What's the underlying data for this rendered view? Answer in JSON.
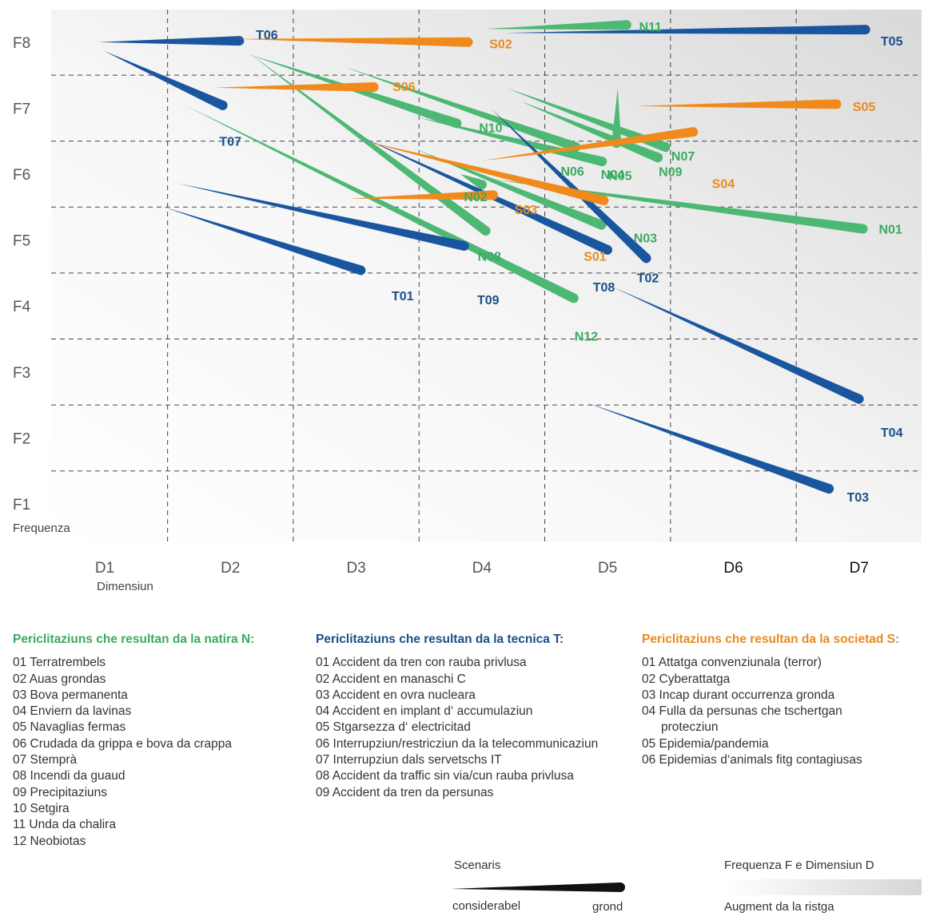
{
  "chart_data": {
    "type": "scatter",
    "title": "",
    "x_axis": {
      "label": "Dimensiun",
      "ticks": [
        "D1",
        "D2",
        "D3",
        "D4",
        "D5",
        "D6",
        "D7"
      ],
      "range": [
        0.5,
        7.5
      ]
    },
    "y_axis": {
      "label": "Frequenza",
      "ticks": [
        "F1",
        "F2",
        "F3",
        "F4",
        "F5",
        "F6",
        "F7",
        "F8"
      ],
      "range": [
        0.5,
        8.5
      ]
    },
    "grid": true,
    "background": "gradient white to grey, increasing towards high frequency and dimension",
    "colors": {
      "N": "#4db873",
      "T": "#1a56a0",
      "S": "#f08a1c"
    },
    "scenarios": [
      {
        "id": "N01",
        "group": "N",
        "from": [
          4.05,
          5.93
        ],
        "to": [
          7.03,
          5.17
        ],
        "label": [
          7.25,
          5.17
        ]
      },
      {
        "id": "N02",
        "group": "N",
        "from": [
          3.83,
          6.0
        ],
        "to": [
          4.0,
          5.84
        ],
        "label": [
          3.95,
          5.66
        ]
      },
      {
        "id": "N03",
        "group": "N",
        "from": [
          3.47,
          6.38
        ],
        "to": [
          4.95,
          5.23
        ],
        "label": [
          5.3,
          5.04
        ]
      },
      {
        "id": "N04",
        "group": "N",
        "from": [
          5.08,
          7.3
        ],
        "to": [
          5.07,
          6.47
        ],
        "label": [
          5.04,
          6.0
        ]
      },
      {
        "id": "N05",
        "group": "N",
        "from": [
          3.47,
          6.87
        ],
        "to": [
          4.96,
          6.19
        ],
        "label": [
          5.1,
          5.98
        ]
      },
      {
        "id": "N06",
        "group": "N",
        "from": [
          2.9,
          7.63
        ],
        "to": [
          4.75,
          6.41
        ],
        "label": [
          4.72,
          6.05
        ]
      },
      {
        "id": "N07",
        "group": "N",
        "from": [
          4.2,
          7.3
        ],
        "to": [
          5.46,
          6.41
        ],
        "label": [
          5.6,
          6.28
        ]
      },
      {
        "id": "N08",
        "group": "N",
        "from": [
          2.15,
          7.83
        ],
        "to": [
          4.03,
          5.14
        ],
        "label": [
          4.06,
          4.76
        ]
      },
      {
        "id": "N09",
        "group": "N",
        "from": [
          4.3,
          7.11
        ],
        "to": [
          5.4,
          6.25
        ],
        "label": [
          5.5,
          6.04
        ]
      },
      {
        "id": "N10",
        "group": "N",
        "from": [
          2.14,
          7.82
        ],
        "to": [
          3.8,
          6.77
        ],
        "label": [
          4.07,
          6.71
        ]
      },
      {
        "id": "N11",
        "group": "N",
        "from": [
          4.03,
          8.2
        ],
        "to": [
          5.15,
          8.26
        ],
        "label": [
          5.34,
          8.24
        ]
      },
      {
        "id": "N12",
        "group": "N",
        "from": [
          1.62,
          7.06
        ],
        "to": [
          4.73,
          4.12
        ],
        "label": [
          4.83,
          3.55
        ]
      },
      {
        "id": "T01",
        "group": "T",
        "from": [
          1.47,
          5.5
        ],
        "to": [
          3.04,
          4.54
        ],
        "label": [
          3.37,
          4.16
        ]
      },
      {
        "id": "T02",
        "group": "T",
        "from": [
          4.07,
          7.0
        ],
        "to": [
          5.31,
          4.72
        ],
        "label": [
          5.32,
          4.43
        ]
      },
      {
        "id": "T03",
        "group": "T",
        "from": [
          4.84,
          2.53
        ],
        "to": [
          6.76,
          1.23
        ],
        "label": [
          6.99,
          1.11
        ]
      },
      {
        "id": "T04",
        "group": "T",
        "from": [
          5.04,
          4.29
        ],
        "to": [
          7.0,
          2.59
        ],
        "label": [
          7.26,
          2.09
        ]
      },
      {
        "id": "T05",
        "group": "T",
        "from": [
          4.18,
          8.14
        ],
        "to": [
          7.05,
          8.19
        ],
        "label": [
          7.26,
          8.02
        ]
      },
      {
        "id": "T06",
        "group": "T",
        "from": [
          0.95,
          8.0
        ],
        "to": [
          2.07,
          8.02
        ],
        "label": [
          2.29,
          8.12
        ]
      },
      {
        "id": "T07",
        "group": "T",
        "from": [
          0.99,
          7.87
        ],
        "to": [
          1.94,
          7.04
        ],
        "label": [
          2.0,
          6.5
        ]
      },
      {
        "id": "T08",
        "group": "T",
        "from": [
          3.06,
          6.55
        ],
        "to": [
          5.0,
          4.85
        ],
        "label": [
          4.97,
          4.29
        ]
      },
      {
        "id": "T09",
        "group": "T",
        "from": [
          1.58,
          5.86
        ],
        "to": [
          3.86,
          4.91
        ],
        "label": [
          4.05,
          4.1
        ]
      },
      {
        "id": "S01",
        "group": "S",
        "from": [
          3.07,
          6.5
        ],
        "to": [
          4.97,
          5.6
        ],
        "label": [
          4.9,
          4.76
        ]
      },
      {
        "id": "S02",
        "group": "S",
        "from": [
          2.05,
          8.05
        ],
        "to": [
          3.89,
          8.0
        ],
        "label": [
          4.15,
          7.98
        ]
      },
      {
        "id": "S03",
        "group": "S",
        "from": [
          2.95,
          5.63
        ],
        "to": [
          4.09,
          5.68
        ],
        "label": [
          4.35,
          5.47
        ]
      },
      {
        "id": "S04",
        "group": "S",
        "from": [
          3.99,
          6.2
        ],
        "to": [
          5.68,
          6.64
        ],
        "label": [
          5.92,
          5.86
        ]
      },
      {
        "id": "S05",
        "group": "S",
        "from": [
          5.22,
          7.03
        ],
        "to": [
          6.82,
          7.06
        ],
        "label": [
          7.04,
          7.03
        ]
      },
      {
        "id": "S06",
        "group": "S",
        "from": [
          1.87,
          7.31
        ],
        "to": [
          3.14,
          7.32
        ],
        "label": [
          3.38,
          7.33
        ]
      }
    ]
  },
  "legend": {
    "natira": {
      "title": "Periclitaziuns che resultan da la natira N:",
      "items": [
        "01 Terratrembels",
        "02 Auas grondas",
        "03 Bova permanenta",
        "04 Enviern da lavinas",
        "05 Navaglias fermas",
        "06 Crudada da grippa e bova da crappa",
        "07 Stemprà",
        "08 Incendi da guaud",
        "09 Precipitaziuns",
        "10 Setgira",
        "11 Unda da chalira",
        "12 Neobiotas"
      ]
    },
    "tecnica": {
      "title": "Periclitaziuns che resultan da la tecnica T:",
      "items": [
        "01 Accident da tren con rauba privlusa",
        "02 Accident en manaschi C",
        "03 Accident en ovra nucleara",
        "04 Accident en implant d‘ accumulaziun",
        "05 Stgarsezza d‘ electricitad",
        "06 Interrupziun/restricziun da la telecommunicaziun",
        "07 Interrupziun dals servetschs IT",
        "08 Accident da traffic sin via/cun rauba privlusa",
        "09 Accident da tren da persunas"
      ]
    },
    "societad": {
      "title": "Periclitaziuns che resultan da la societad S:",
      "items": [
        "01  Attatga convenziunala (terror)",
        "02 Cyberattatga",
        "03 Incap durant occurrenza gronda",
        "04 Fulla da persunas che tschertgan protecziun",
        "05 Epidemia/pandemia",
        "06 Epidemias d‘animals fitg contagiusas"
      ]
    }
  },
  "key": {
    "scenarios_title": "Scenaris",
    "scenarios_small": "considerabel",
    "scenarios_large": "grond",
    "gradient_title": "Frequenza F e Dimensiun D",
    "gradient_caption": "Augment da la ristga"
  }
}
